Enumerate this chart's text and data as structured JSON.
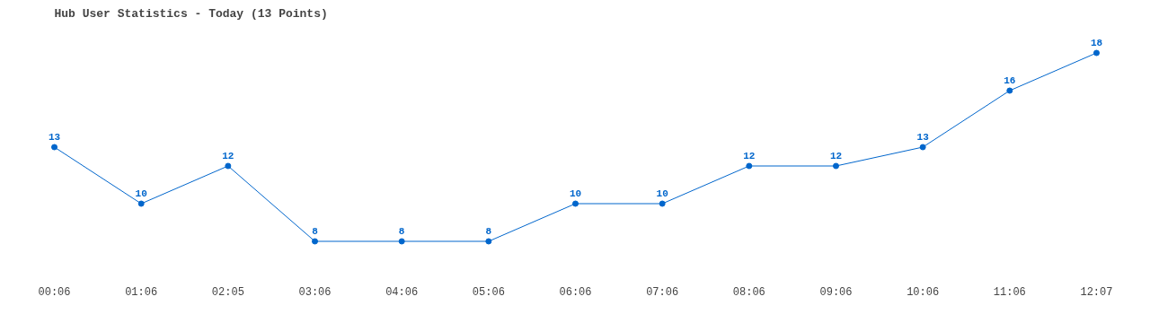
{
  "chart_data": {
    "type": "line",
    "title": "Hub User Statistics - Today (13 Points)",
    "categories": [
      "00:06",
      "01:06",
      "02:05",
      "03:06",
      "04:06",
      "05:06",
      "06:06",
      "07:06",
      "08:06",
      "09:06",
      "10:06",
      "11:06",
      "12:07"
    ],
    "series": [
      {
        "color": "#0066cc",
        "values": [
          13,
          10,
          12,
          8,
          8,
          8,
          10,
          10,
          12,
          12,
          13,
          16,
          18
        ]
      }
    ],
    "tick_labels": "x",
    "data_labels": true,
    "marker": "circle"
  }
}
